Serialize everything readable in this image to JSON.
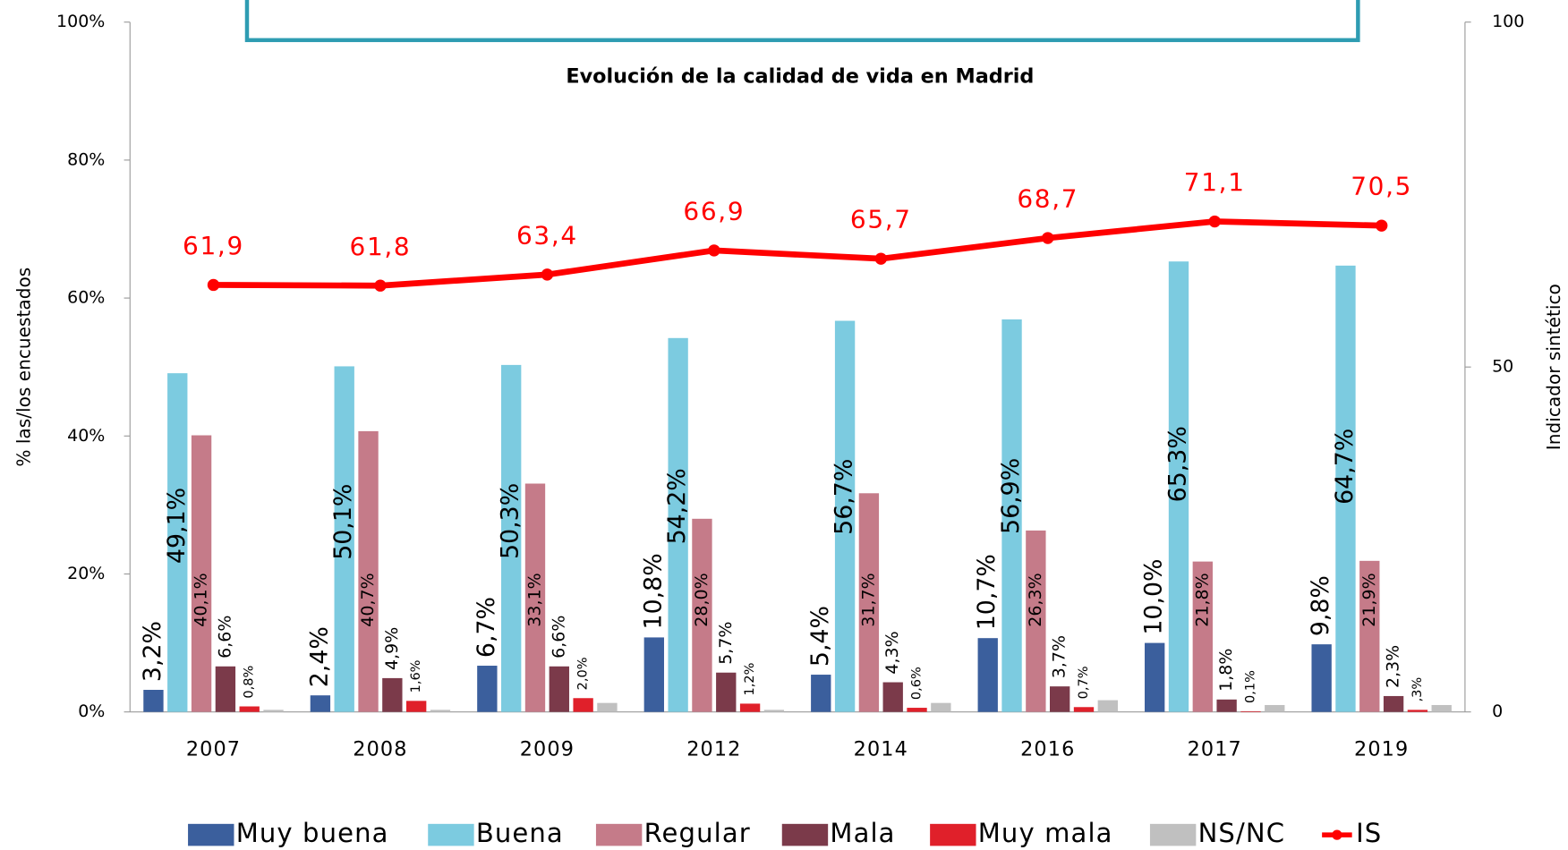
{
  "chart_data": {
    "type": "bar",
    "title": "Evolución de la calidad de vida en Madrid",
    "y_label": "% las/los encuestados",
    "y2_label": "Indicador sintético",
    "categories": [
      "2007",
      "2008",
      "2009",
      "2012",
      "2014",
      "2016",
      "2017",
      "2019"
    ],
    "ylim": [
      0,
      100
    ],
    "yticks": [
      {
        "value": 0,
        "label": "0%"
      },
      {
        "value": 20,
        "label": "20%"
      },
      {
        "value": 40,
        "label": "40%"
      },
      {
        "value": 60,
        "label": "60%"
      },
      {
        "value": 80,
        "label": "80%"
      },
      {
        "value": 100,
        "label": "100%"
      }
    ],
    "y2lim": [
      0,
      100
    ],
    "y2ticks": [
      0,
      50,
      100
    ],
    "legend": "bottom",
    "series": [
      {
        "name": "Muy buena",
        "color": "#3b5f9d",
        "values": [
          3.2,
          2.4,
          6.7,
          10.8,
          5.4,
          10.7,
          10.0,
          9.8
        ],
        "value_labels": [
          "3,2%",
          "2,4%",
          "6,7%",
          "10,8%",
          "5,4%",
          "10,7%",
          "10,0%",
          "9,8%"
        ]
      },
      {
        "name": "Buena",
        "color": "#7ccbe0",
        "values": [
          49.1,
          50.1,
          50.3,
          54.2,
          56.7,
          56.9,
          65.3,
          64.7
        ],
        "value_labels": [
          "49,1%",
          "50,1%",
          "50,3%",
          "54,2%",
          "56,7%",
          "56,9%",
          "65,3%",
          "64,7%"
        ]
      },
      {
        "name": "Regular",
        "color": "#c57b89",
        "values": [
          40.1,
          40.7,
          33.1,
          28.0,
          31.7,
          26.3,
          21.8,
          21.9
        ],
        "value_labels": [
          "40,1%",
          "40,7%",
          "33,1%",
          "28,0%",
          "31,7%",
          "26,3%",
          "21,8%",
          "21,9%"
        ]
      },
      {
        "name": "Mala",
        "color": "#7b3a4a",
        "values": [
          6.6,
          4.9,
          6.6,
          5.7,
          4.3,
          3.7,
          1.8,
          2.3
        ],
        "value_labels": [
          "6,6%",
          "4,9%",
          "6,6%",
          "5,7%",
          "4,3%",
          "3,7%",
          "1,8%",
          "2,3%"
        ]
      },
      {
        "name": "Muy mala",
        "color": "#e0202a",
        "values": [
          0.8,
          1.6,
          2.0,
          1.2,
          0.6,
          0.7,
          0.1,
          0.3
        ],
        "value_labels": [
          "0,8%",
          "1,6%",
          "2,0%",
          "1,2%",
          "0,6%",
          "0,7%",
          "0,1%",
          ",3%"
        ]
      },
      {
        "name": "NS/NC",
        "color": "#c0c0c0",
        "values": [
          0.3,
          0.3,
          1.3,
          0.3,
          1.3,
          1.7,
          1.0,
          1.0
        ]
      },
      {
        "name": "IS",
        "color": "#ff0000",
        "type": "line",
        "axis": "y2",
        "values": [
          61.9,
          61.8,
          63.4,
          66.9,
          65.7,
          68.7,
          71.1,
          70.5
        ],
        "value_labels": [
          "61,9",
          "61,8",
          "63,4",
          "66,9",
          "65,7",
          "68,7",
          "71,1",
          "70,5"
        ]
      }
    ]
  }
}
